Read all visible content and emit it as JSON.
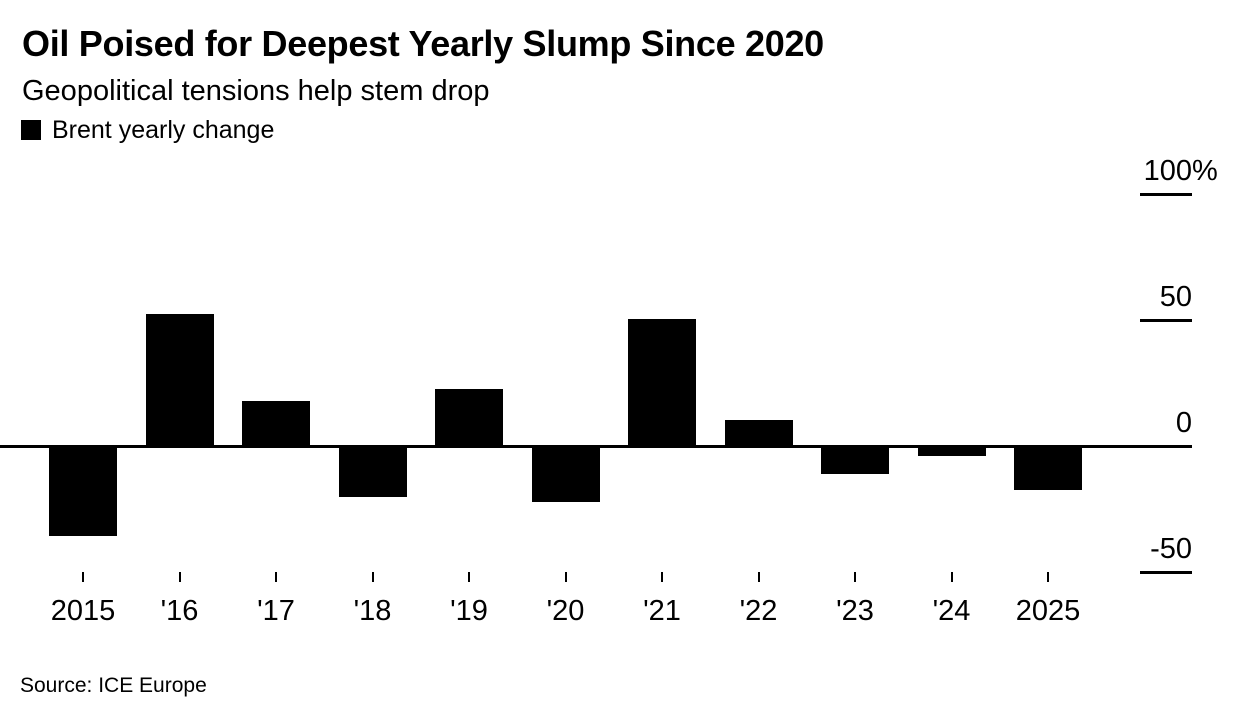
{
  "header": {
    "title": "Oil Poised for Deepest Yearly Slump Since 2020",
    "subtitle": "Geopolitical tensions help stem drop"
  },
  "legend": {
    "label": "Brent yearly change",
    "swatch_color": "#000000"
  },
  "chart_data": {
    "type": "bar",
    "title": "Oil Poised for Deepest Yearly Slump Since 2020",
    "subtitle": "Geopolitical tensions help stem drop",
    "series_name": "Brent yearly change",
    "unit": "%",
    "categories": [
      "2015",
      "'16",
      "'17",
      "'18",
      "'19",
      "'20",
      "'21",
      "'22",
      "'23",
      "'24",
      "2025"
    ],
    "values": [
      -35,
      52.4,
      17.7,
      -19.5,
      22.7,
      -21.5,
      50.2,
      10.5,
      -10.3,
      -3.1,
      -16.8
    ],
    "ylim": [
      -50,
      100
    ],
    "y_ticks": [
      {
        "label": "100",
        "suffix": "%",
        "value": 100
      },
      {
        "label": "50",
        "suffix": "",
        "value": 50
      },
      {
        "label": "0",
        "suffix": "",
        "value": 0
      },
      {
        "label": "-50",
        "suffix": "",
        "value": -50
      }
    ],
    "grid": "right-edge dash ticks only",
    "legend_position": "top-left",
    "bar_color": "#000000",
    "axis_color": "#000000"
  },
  "footer": {
    "source": "Source: ICE Europe"
  }
}
